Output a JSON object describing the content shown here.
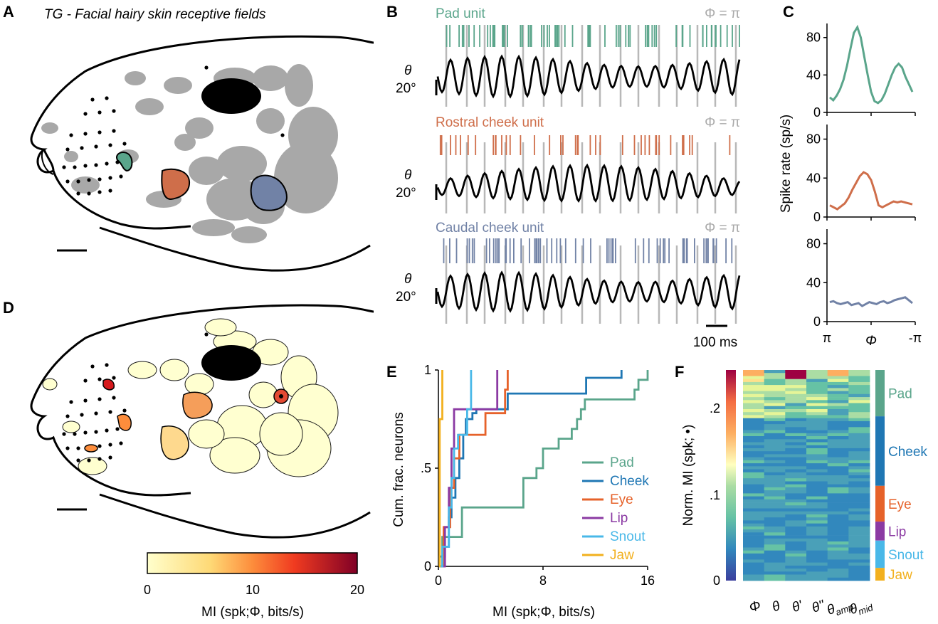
{
  "panels": {
    "A": {
      "letter": "A",
      "title": "TG - Facial hairy skin receptive fields"
    },
    "B": {
      "letter": "B",
      "units": [
        {
          "name": "Pad unit",
          "phase_label": "Φ = π",
          "color": "#5aa58b",
          "y_label": "θ",
          "scale_label": "20°"
        },
        {
          "name": "Rostral cheek unit",
          "phase_label": "Φ = π",
          "color": "#cf6e4a",
          "y_label": "θ",
          "scale_label": "20°"
        },
        {
          "name": "Caudal cheek unit",
          "phase_label": "Φ = π",
          "color": "#7182a6",
          "y_label": "θ",
          "scale_label": "20°"
        }
      ],
      "time_scale": "100 ms"
    },
    "C": {
      "letter": "C",
      "ylabel": "Spike rate (sp/s)",
      "xlabel": "Φ",
      "xticks": [
        "π",
        "-π"
      ],
      "yticks": [
        "0",
        "40",
        "80"
      ]
    },
    "D": {
      "letter": "D",
      "colorbar_label": "MI (spk;Φ, bits/s)",
      "colorbar_ticks": [
        "0",
        "10",
        "20"
      ]
    },
    "E": {
      "letter": "E",
      "ylabel": "Cum. frac. neurons",
      "xlabel": "MI (spk;Φ, bits/s)",
      "xticks": [
        "0",
        "8",
        "16"
      ],
      "yticks": [
        "0",
        ".5",
        "1"
      ]
    },
    "F": {
      "letter": "F",
      "ylabel": "Norm. MI (spk; •)",
      "yticks": [
        "0",
        ".1",
        ".2"
      ],
      "columns": [
        "Φ",
        "θ",
        "θ'",
        "θ''",
        "θ",
        "θ"
      ],
      "column_subscripts": [
        "",
        "",
        "",
        "",
        "amp",
        "mid"
      ],
      "groups": [
        {
          "name": "Pad",
          "color": "#5aa58b",
          "frac": 0.22
        },
        {
          "name": "Cheek",
          "color": "#1f77b4",
          "frac": 0.33
        },
        {
          "name": "Eye",
          "color": "#e6622a",
          "frac": 0.17
        },
        {
          "name": "Lip",
          "color": "#8b3aa3",
          "frac": 0.09
        },
        {
          "name": "Snout",
          "color": "#49b8e8",
          "frac": 0.13
        },
        {
          "name": "Jaw",
          "color": "#f2b01e",
          "frac": 0.06
        }
      ]
    }
  },
  "chart_data": [
    {
      "type": "line",
      "panel": "C-pad",
      "color": "#5aa58b",
      "x": [
        0,
        1,
        2,
        3,
        4,
        5,
        6,
        7,
        8,
        9,
        10,
        11,
        12,
        13,
        14,
        15,
        16,
        17,
        18,
        19,
        20,
        21,
        22,
        23,
        24,
        25,
        26,
        27,
        28,
        29,
        30
      ],
      "y": [
        16,
        13,
        18,
        25,
        35,
        50,
        68,
        85,
        91,
        80,
        60,
        40,
        22,
        12,
        10,
        13,
        20,
        30,
        40,
        48,
        52,
        48,
        38,
        30,
        22,
        null,
        null,
        null,
        null,
        null,
        null
      ],
      "xlabel": "Φ",
      "ylabel": "Spike rate (sp/s)",
      "ylim": [
        0,
        95
      ]
    },
    {
      "type": "line",
      "panel": "C-rostral",
      "color": "#cf6e4a",
      "y": [
        12,
        10,
        8,
        11,
        14,
        20,
        28,
        35,
        42,
        46,
        44,
        38,
        26,
        12,
        10,
        12,
        14,
        16,
        15,
        16,
        15,
        14,
        13
      ],
      "ylim": [
        0,
        95
      ]
    },
    {
      "type": "line",
      "panel": "C-caudal",
      "color": "#7182a6",
      "y": [
        20,
        21,
        19,
        18,
        19,
        20,
        17,
        18,
        19,
        16,
        18,
        20,
        19,
        18,
        20,
        21,
        19,
        20,
        22,
        23,
        24,
        25,
        22,
        19
      ],
      "ylim": [
        0,
        95
      ]
    },
    {
      "type": "line",
      "panel": "E",
      "xlabel": "MI (spk;Φ, bits/s)",
      "ylabel": "Cum. frac. neurons",
      "xlim": [
        0,
        16
      ],
      "ylim": [
        0,
        1
      ],
      "series": [
        {
          "name": "Pad",
          "color": "#5aa58b",
          "x": [
            0.3,
            1.8,
            2.2,
            3.0,
            6.5,
            7.5,
            8.0,
            9.2,
            10.2,
            10.6,
            10.9,
            11.2,
            11.9,
            15.0,
            15.3,
            16.0
          ],
          "y": [
            0.15,
            0.3,
            0.3,
            0.3,
            0.45,
            0.5,
            0.6,
            0.65,
            0.7,
            0.75,
            0.8,
            0.85,
            0.85,
            0.9,
            0.95,
            1.0
          ]
        },
        {
          "name": "Cheek",
          "color": "#1f77b4",
          "x": [
            0.1,
            0.5,
            0.8,
            1.0,
            1.3,
            1.6,
            1.9,
            2.1,
            2.6,
            2.9,
            5.3,
            11.3,
            14.0
          ],
          "y": [
            0.05,
            0.1,
            0.25,
            0.35,
            0.45,
            0.55,
            0.67,
            0.75,
            0.78,
            0.8,
            0.88,
            0.96,
            1.0
          ]
        },
        {
          "name": "Eye",
          "color": "#e6622a",
          "x": [
            0.4,
            0.9,
            1.2,
            1.6,
            2.0,
            3.6,
            5.1,
            5.3
          ],
          "y": [
            0.2,
            0.4,
            0.55,
            0.67,
            0.67,
            0.78,
            0.9,
            1.0
          ]
        },
        {
          "name": "Lip",
          "color": "#8b3aa3",
          "x": [
            0.5,
            0.8,
            1.0,
            1.2,
            2.0,
            4.2,
            4.5
          ],
          "y": [
            0.2,
            0.4,
            0.6,
            0.8,
            0.8,
            0.8,
            1.0
          ]
        },
        {
          "name": "Snout",
          "color": "#49b8e8",
          "x": [
            0.3,
            0.8,
            1.0,
            1.2,
            1.5,
            2.2,
            2.5
          ],
          "y": [
            0.1,
            0.3,
            0.45,
            0.6,
            0.67,
            0.8,
            1.0
          ]
        },
        {
          "name": "Jaw",
          "color": "#f2b01e",
          "x": [
            0.1,
            0.3
          ],
          "y": [
            0.75,
            1.0
          ]
        }
      ]
    }
  ]
}
